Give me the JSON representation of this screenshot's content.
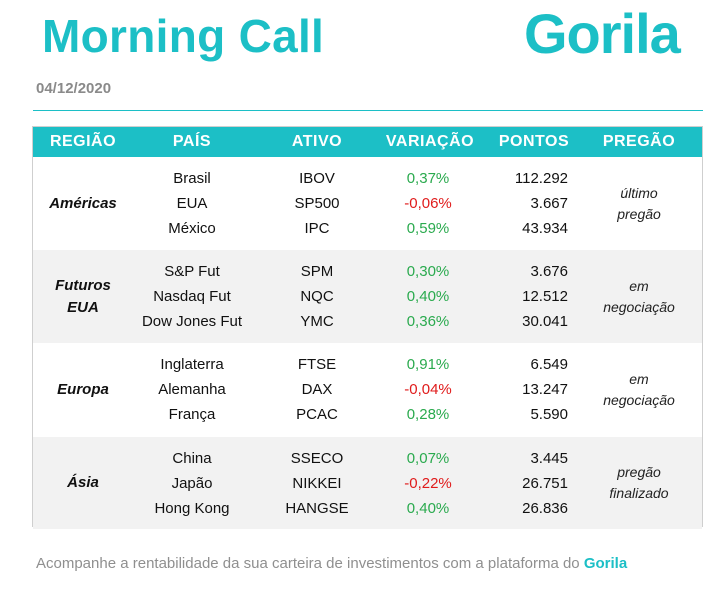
{
  "header": {
    "title": "Morning Call",
    "logo_text": "Gorila",
    "date": "04/12/2020"
  },
  "table": {
    "columns": [
      "REGIÃO",
      "PAÍS",
      "ATIVO",
      "VARIAÇÃO",
      "PONTOS",
      "PREGÃO"
    ],
    "groups": [
      {
        "region": [
          "Américas"
        ],
        "session": [
          "último",
          "pregão"
        ],
        "rows": [
          {
            "country": "Brasil",
            "asset": "IBOV",
            "variation": "0,37%",
            "points": "112.292"
          },
          {
            "country": "EUA",
            "asset": "SP500",
            "variation": "-0,06%",
            "points": "3.667"
          },
          {
            "country": "México",
            "asset": "IPC",
            "variation": "0,59%",
            "points": "43.934"
          }
        ]
      },
      {
        "region": [
          "Futuros",
          "EUA"
        ],
        "session": [
          "em",
          "negociação"
        ],
        "rows": [
          {
            "country": "S&P Fut",
            "asset": "SPM",
            "variation": "0,30%",
            "points": "3.676"
          },
          {
            "country": "Nasdaq Fut",
            "asset": "NQC",
            "variation": "0,40%",
            "points": "12.512"
          },
          {
            "country": "Dow Jones Fut",
            "asset": "YMC",
            "variation": "0,36%",
            "points": "30.041"
          }
        ]
      },
      {
        "region": [
          "Europa"
        ],
        "session": [
          "em",
          "negociação"
        ],
        "rows": [
          {
            "country": "Inglaterra",
            "asset": "FTSE",
            "variation": "0,91%",
            "points": "6.549"
          },
          {
            "country": "Alemanha",
            "asset": "DAX",
            "variation": "-0,04%",
            "points": "13.247"
          },
          {
            "country": "França",
            "asset": "PCAC",
            "variation": "0,28%",
            "points": "5.590"
          }
        ]
      },
      {
        "region": [
          "Ásia"
        ],
        "session": [
          "pregão",
          "finalizado"
        ],
        "rows": [
          {
            "country": "China",
            "asset": "SSECO",
            "variation": "0,07%",
            "points": "3.445"
          },
          {
            "country": "Japão",
            "asset": "NIKKEI",
            "variation": "-0,22%",
            "points": "26.751"
          },
          {
            "country": "Hong Kong",
            "asset": "HANGSE",
            "variation": "0,40%",
            "points": "26.836"
          }
        ]
      }
    ]
  },
  "footer": {
    "text": "Acompanhe a rentabilidade da sua carteira de investimentos com a plataforma do",
    "brand": "Gorila"
  },
  "colors": {
    "accent": "#1cbfc6",
    "positive": "#2aaa4e",
    "negative": "#e01b1b",
    "band": "#f2f2f2"
  }
}
